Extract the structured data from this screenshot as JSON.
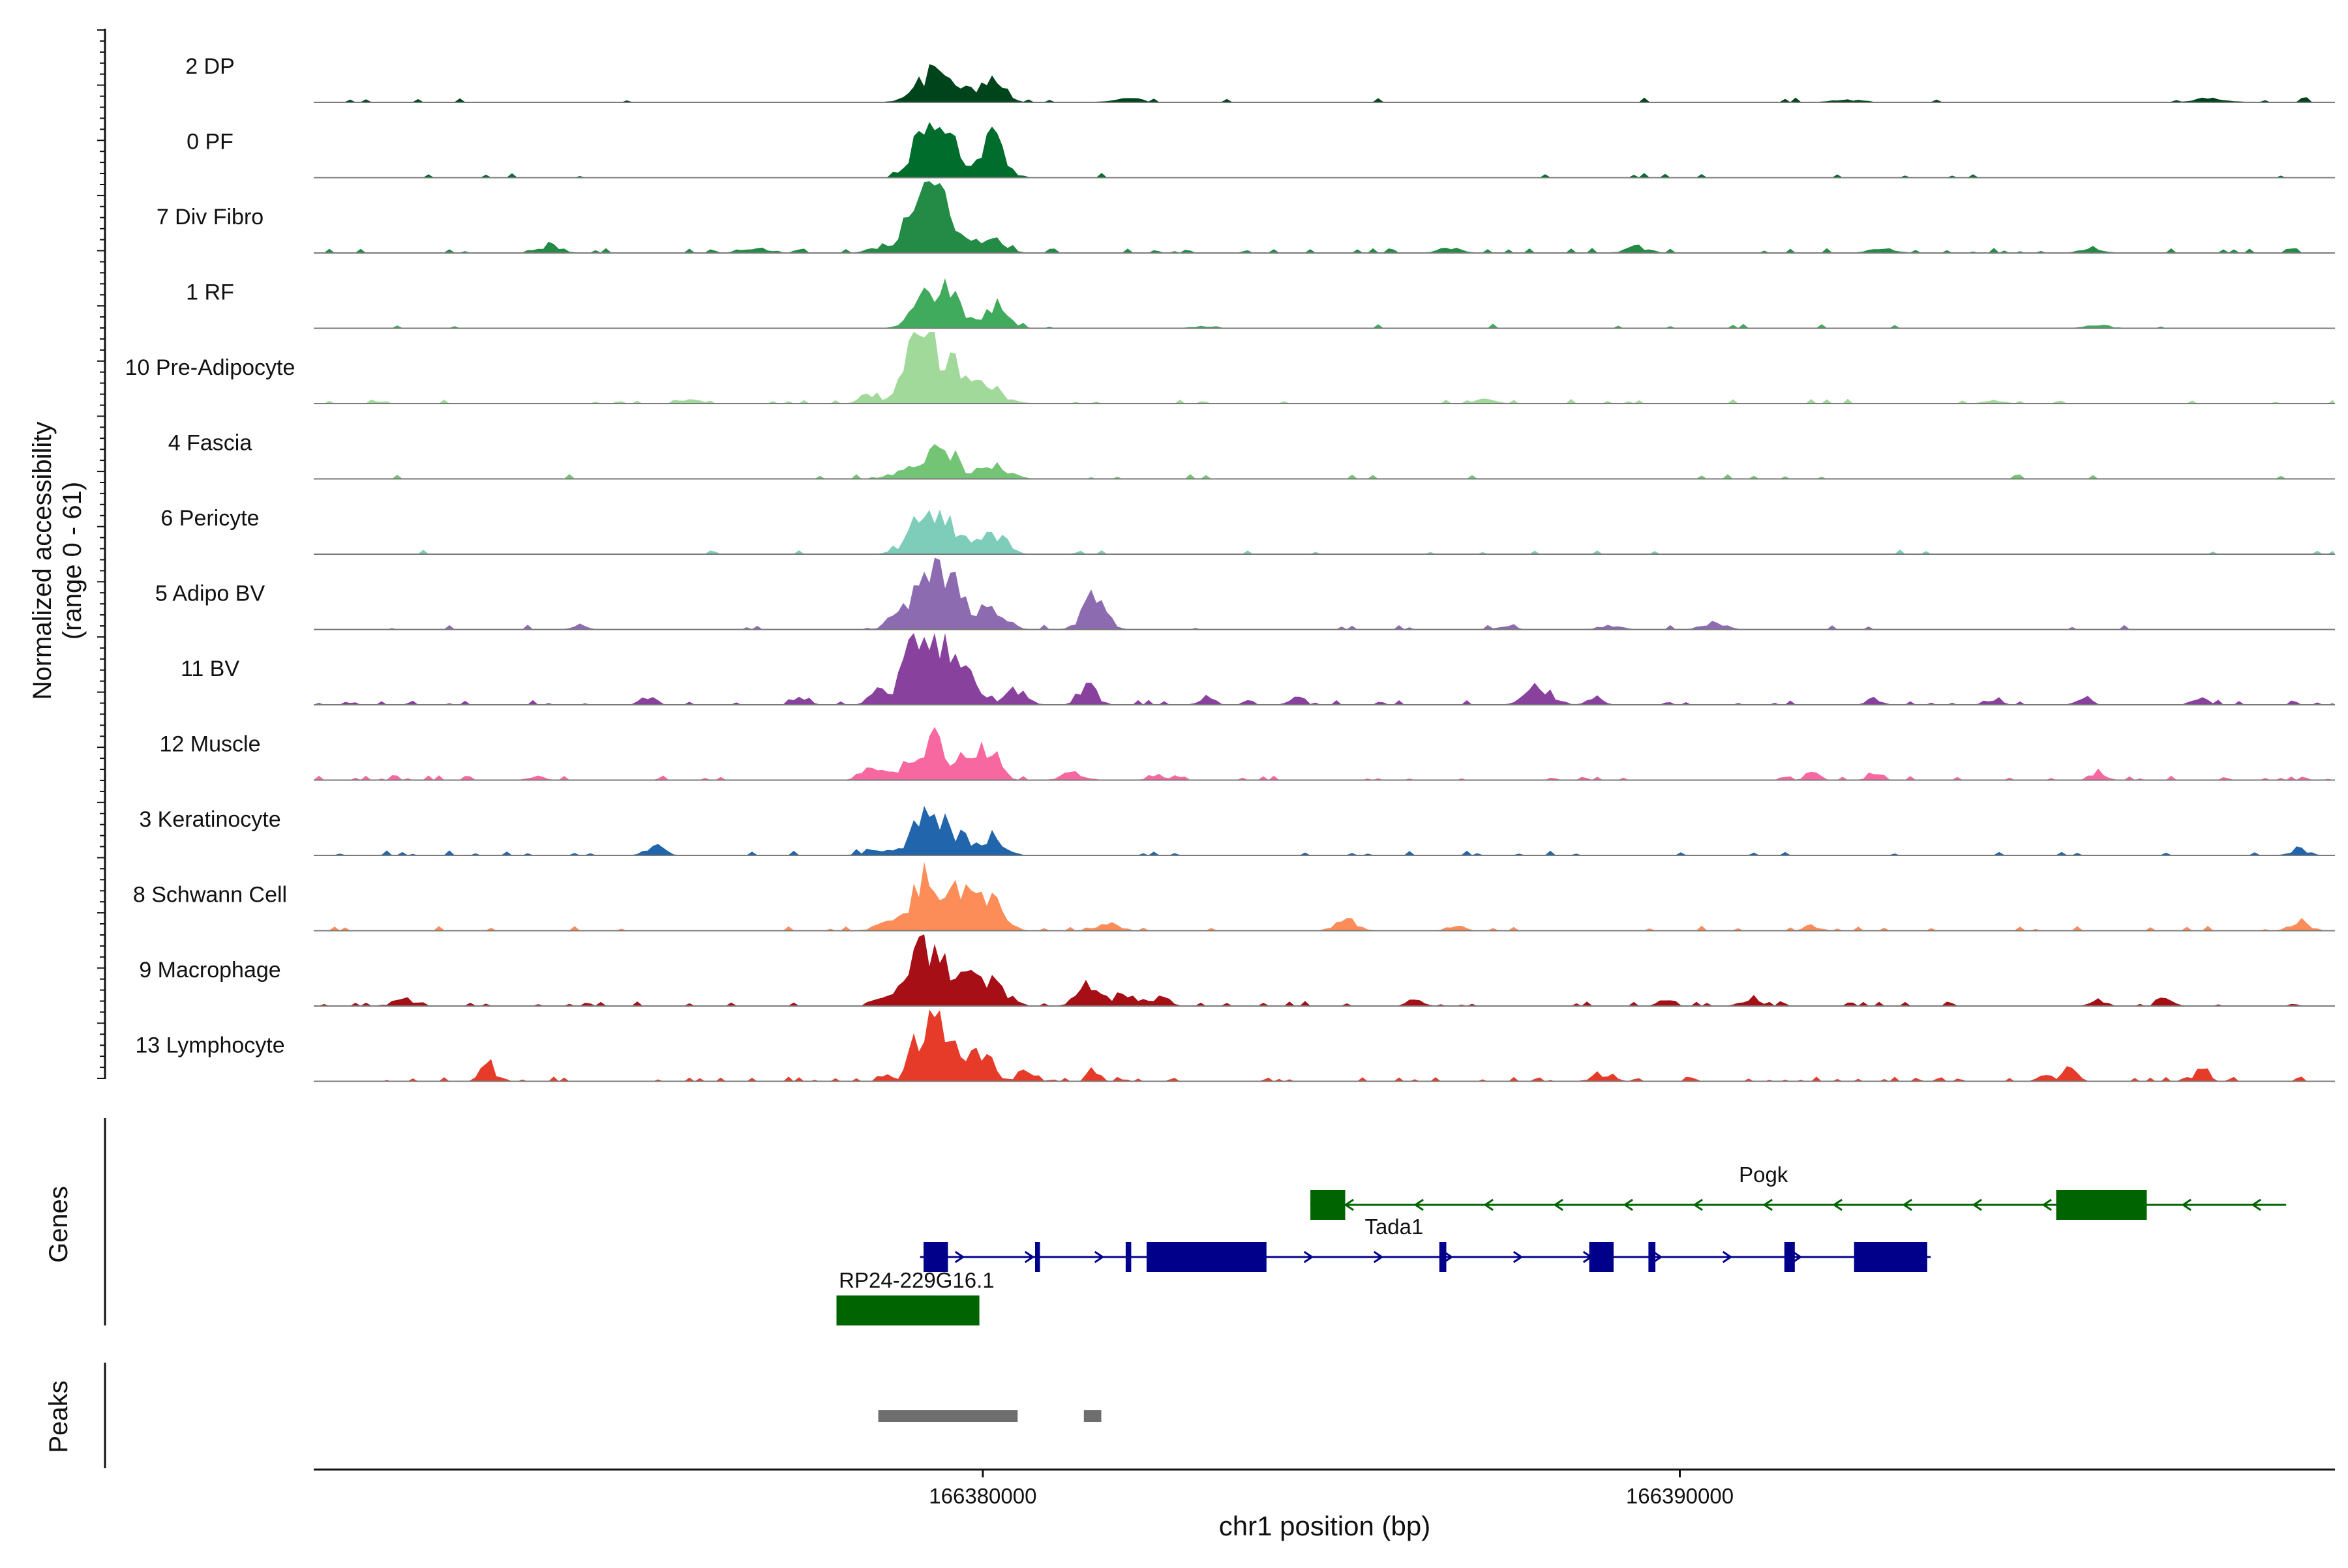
{
  "chart_data": {
    "type": "area",
    "subtype": "genome-coverage-track",
    "chromosome": "chr1",
    "xlabel": "chr1 position (bp)",
    "xlim": [
      166370400,
      166399400
    ],
    "x_ticks": [
      166380000,
      166390000
    ],
    "x_tick_labels": [
      "166380000",
      "166390000"
    ],
    "ylabel_line1": "Normalized accessibility",
    "ylabel_line2": "(range 0 - 61)",
    "ylim": [
      0,
      61
    ],
    "panel_labels": {
      "genes": "Genes",
      "peaks": "Peaks"
    },
    "series": [
      {
        "name": "2 DP",
        "color": "#00441B",
        "baseline": 0.4,
        "noise": 0.05,
        "seed": 11,
        "peaks": [
          [
            166379200,
            200,
            22
          ],
          [
            166379550,
            150,
            12
          ],
          [
            166380150,
            160,
            16
          ],
          [
            166379900,
            250,
            6
          ],
          [
            166382100,
            180,
            3
          ],
          [
            166392400,
            200,
            2
          ],
          [
            166397600,
            200,
            3
          ]
        ]
      },
      {
        "name": "0 PF",
        "color": "#006D2C",
        "baseline": 0.2,
        "noise": 0.04,
        "seed": 23,
        "peaks": [
          [
            166379200,
            200,
            42
          ],
          [
            166379550,
            150,
            18
          ],
          [
            166380150,
            160,
            33
          ],
          [
            166379850,
            300,
            8
          ]
        ]
      },
      {
        "name": "7 Div Fibro",
        "color": "#238B45",
        "baseline": 0.3,
        "noise": 0.15,
        "seed": 37,
        "peaks": [
          [
            166379150,
            250,
            44
          ],
          [
            166379500,
            200,
            20
          ],
          [
            166380100,
            200,
            9
          ],
          [
            166373800,
            150,
            7
          ],
          [
            166376700,
            150,
            5
          ],
          [
            166378500,
            150,
            4
          ],
          [
            166386700,
            150,
            4
          ],
          [
            166389400,
            150,
            5
          ],
          [
            166392900,
            150,
            4
          ],
          [
            166395900,
            150,
            4
          ]
        ]
      },
      {
        "name": "1 RF",
        "color": "#41AB5D",
        "baseline": 0.2,
        "noise": 0.04,
        "seed": 41,
        "peaks": [
          [
            166379250,
            200,
            38
          ],
          [
            166379600,
            150,
            16
          ],
          [
            166380200,
            160,
            22
          ],
          [
            166383200,
            150,
            2
          ],
          [
            166396000,
            150,
            3
          ]
        ]
      },
      {
        "name": "10 Pre-Adipocyte",
        "color": "#A1D99B",
        "baseline": 0.2,
        "noise": 0.1,
        "seed": 53,
        "peaks": [
          [
            166379000,
            150,
            45
          ],
          [
            166379300,
            150,
            35
          ],
          [
            166379600,
            200,
            22
          ],
          [
            166378400,
            150,
            8
          ],
          [
            166380000,
            250,
            12
          ],
          [
            166375800,
            150,
            3
          ],
          [
            166387200,
            150,
            3
          ],
          [
            166394500,
            150,
            3
          ]
        ]
      },
      {
        "name": "4 Fascia",
        "color": "#74C476",
        "baseline": 0.2,
        "noise": 0.05,
        "seed": 67,
        "peaks": [
          [
            166379200,
            200,
            22
          ],
          [
            166379550,
            150,
            16
          ],
          [
            166380150,
            200,
            12
          ],
          [
            166378800,
            150,
            5
          ]
        ]
      },
      {
        "name": "6 Pericyte",
        "color": "#7ECDBB",
        "baseline": 0.2,
        "noise": 0.05,
        "seed": 71,
        "peaks": [
          [
            166379150,
            220,
            28
          ],
          [
            166379500,
            150,
            15
          ],
          [
            166380200,
            160,
            16
          ],
          [
            166379850,
            200,
            8
          ]
        ]
      },
      {
        "name": "5 Adipo BV",
        "color": "#8C6BB1",
        "baseline": 0.2,
        "noise": 0.08,
        "seed": 83,
        "peaks": [
          [
            166379300,
            250,
            52
          ],
          [
            166378800,
            150,
            10
          ],
          [
            166379800,
            250,
            14
          ],
          [
            166380200,
            160,
            12
          ],
          [
            166381600,
            160,
            26
          ],
          [
            166390500,
            150,
            7
          ],
          [
            166374200,
            100,
            4
          ],
          [
            166387500,
            120,
            3
          ],
          [
            166389000,
            150,
            3
          ]
        ]
      },
      {
        "name": "11 BV",
        "color": "#88419D",
        "baseline": 0.2,
        "noise": 0.15,
        "seed": 97,
        "peaks": [
          [
            166379000,
            150,
            50
          ],
          [
            166379350,
            200,
            48
          ],
          [
            166379800,
            200,
            20
          ],
          [
            166378500,
            120,
            12
          ],
          [
            166380500,
            150,
            12
          ],
          [
            166381500,
            120,
            20
          ],
          [
            166388000,
            180,
            15
          ],
          [
            166375200,
            100,
            7
          ],
          [
            166377400,
            100,
            5
          ],
          [
            166383200,
            100,
            6
          ],
          [
            166384500,
            100,
            5
          ],
          [
            166388800,
            100,
            6
          ],
          [
            166392800,
            100,
            5
          ],
          [
            166394500,
            100,
            6
          ],
          [
            166395800,
            100,
            6
          ],
          [
            166397500,
            100,
            5
          ]
        ]
      },
      {
        "name": "12 Muscle",
        "color": "#F768A1",
        "baseline": 0.2,
        "noise": 0.15,
        "seed": 101,
        "peaks": [
          [
            166379200,
            250,
            35
          ],
          [
            166378400,
            150,
            10
          ],
          [
            166379800,
            200,
            14
          ],
          [
            166380100,
            150,
            18
          ],
          [
            166373600,
            100,
            4
          ],
          [
            166381300,
            150,
            6
          ],
          [
            166382500,
            120,
            5
          ],
          [
            166391900,
            100,
            6
          ],
          [
            166392800,
            100,
            7
          ],
          [
            166396000,
            100,
            8
          ]
        ]
      },
      {
        "name": "3 Keratinocyte",
        "color": "#2166AC",
        "baseline": 0.3,
        "noise": 0.1,
        "seed": 113,
        "peaks": [
          [
            166379250,
            200,
            42
          ],
          [
            166379700,
            200,
            14
          ],
          [
            166380200,
            150,
            12
          ],
          [
            166375300,
            120,
            8
          ],
          [
            166378500,
            200,
            4
          ],
          [
            166398900,
            120,
            5
          ]
        ]
      },
      {
        "name": "8 Schwann Cell",
        "color": "#FC8D59",
        "baseline": 0.3,
        "noise": 0.1,
        "seed": 127,
        "peaks": [
          [
            166379250,
            250,
            45
          ],
          [
            166380050,
            200,
            26
          ],
          [
            166379700,
            200,
            15
          ],
          [
            166378600,
            150,
            6
          ],
          [
            166385200,
            150,
            10
          ],
          [
            166381800,
            150,
            6
          ],
          [
            166398900,
            120,
            10
          ],
          [
            166386800,
            120,
            4
          ],
          [
            166391900,
            100,
            4
          ]
        ]
      },
      {
        "name": "9 Macrophage",
        "color": "#A50F15",
        "baseline": 0.3,
        "noise": 0.15,
        "seed": 131,
        "peaks": [
          [
            166379150,
            200,
            45
          ],
          [
            166379600,
            250,
            25
          ],
          [
            166380150,
            200,
            18
          ],
          [
            166378700,
            150,
            8
          ],
          [
            166381500,
            150,
            16
          ],
          [
            166382000,
            150,
            10
          ],
          [
            166382500,
            150,
            7
          ],
          [
            166371700,
            150,
            6
          ],
          [
            166386200,
            100,
            5
          ],
          [
            166389800,
            100,
            5
          ],
          [
            166391000,
            120,
            6
          ],
          [
            166396000,
            100,
            5
          ],
          [
            166397000,
            100,
            6
          ]
        ]
      },
      {
        "name": "13 Lymphocyte",
        "color": "#E73B2A",
        "baseline": 0.0,
        "noise": 0.2,
        "seed": 139,
        "peaks": [
          [
            166379200,
            80,
            61
          ],
          [
            166379350,
            80,
            45
          ],
          [
            166379000,
            80,
            32
          ],
          [
            166379550,
            120,
            25
          ],
          [
            166379850,
            120,
            20
          ],
          [
            166380100,
            100,
            18
          ],
          [
            166378600,
            80,
            8
          ],
          [
            166380600,
            120,
            8
          ],
          [
            166381600,
            80,
            10
          ],
          [
            166372900,
            100,
            15
          ],
          [
            166388900,
            150,
            6
          ],
          [
            166395600,
            100,
            10
          ],
          [
            166397500,
            80,
            12
          ],
          [
            166395200,
            80,
            6
          ]
        ]
      }
    ],
    "genes": [
      {
        "name": "Pogk",
        "strand": "-",
        "color": "#006400",
        "row": 0,
        "start": 166384700,
        "end": 166398700,
        "label_pos": 166391200,
        "exons": [
          [
            166384700,
            166385200
          ],
          [
            166395400,
            166396700
          ]
        ]
      },
      {
        "name": "Tada1",
        "strand": "+",
        "color": "#00008B",
        "row": 1,
        "start": 166379100,
        "end": 166393600,
        "label_pos": 166385900,
        "exons": [
          [
            166379150,
            166379500
          ],
          [
            166380750,
            166380820
          ],
          [
            166382050,
            166382130
          ],
          [
            166382350,
            166384070
          ],
          [
            166386550,
            166386650
          ],
          [
            166388700,
            166389050
          ],
          [
            166389550,
            166389650
          ],
          [
            166391500,
            166391650
          ],
          [
            166392500,
            166393550
          ]
        ]
      },
      {
        "name": "RP24-229G16.1",
        "strand": "-",
        "color": "#006400",
        "row": 2,
        "start": 166377900,
        "end": 166379950,
        "label_pos": 166379050,
        "exons": [
          [
            166377900,
            166379950
          ]
        ]
      }
    ],
    "peaks": [
      [
        166378500,
        166380500
      ],
      [
        166381450,
        166381700
      ]
    ]
  }
}
